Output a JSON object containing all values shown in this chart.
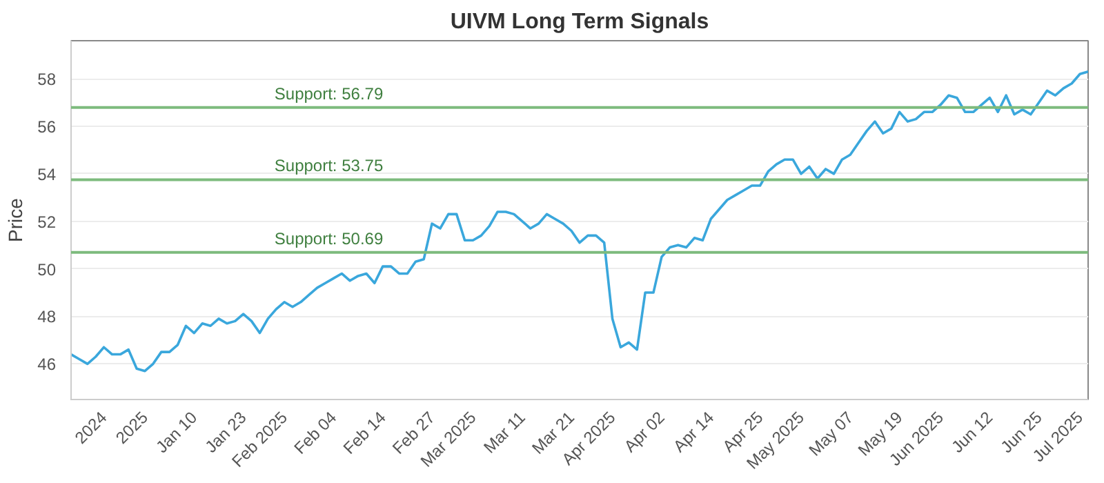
{
  "chart_data": {
    "type": "line",
    "title": "UIVM Long Term Signals",
    "ylabel": "Price",
    "categories": [
      null,
      null,
      null,
      null,
      "2024",
      null,
      null,
      null,
      null,
      "2025",
      null,
      null,
      null,
      null,
      null,
      "Jan 10",
      null,
      null,
      null,
      null,
      null,
      "Jan 23",
      null,
      null,
      null,
      null,
      "Feb 2025",
      null,
      null,
      null,
      null,
      null,
      "Feb 04",
      null,
      null,
      null,
      null,
      null,
      "Feb 14",
      null,
      null,
      null,
      null,
      null,
      "Feb 27",
      null,
      null,
      null,
      null,
      "Mar 2025",
      null,
      null,
      null,
      null,
      null,
      "Mar 11",
      null,
      null,
      null,
      null,
      null,
      "Mar 21",
      null,
      null,
      null,
      null,
      "Apr 2025",
      null,
      null,
      null,
      null,
      null,
      "Apr 02",
      null,
      null,
      null,
      null,
      null,
      "Apr 14",
      null,
      null,
      null,
      null,
      null,
      "Apr 25",
      null,
      null,
      null,
      null,
      "May 2025",
      null,
      null,
      null,
      null,
      null,
      "May 07",
      null,
      null,
      null,
      null,
      null,
      "May 19",
      null,
      null,
      null,
      null,
      "Jun 2025",
      null,
      null,
      null,
      null,
      null,
      "Jun 12",
      null,
      null,
      null,
      null,
      null,
      "Jun 25",
      null,
      null,
      null,
      null,
      "Jul 2025",
      null
    ],
    "series": [
      {
        "color": "#3aa7dc",
        "values": [
          46.4,
          46.2,
          46.0,
          46.3,
          46.7,
          46.4,
          46.4,
          46.6,
          45.8,
          45.7,
          46.0,
          46.5,
          46.5,
          46.8,
          47.6,
          47.3,
          47.7,
          47.6,
          47.9,
          47.7,
          47.8,
          48.1,
          47.8,
          47.3,
          47.9,
          48.3,
          48.6,
          48.4,
          48.6,
          48.9,
          49.2,
          49.4,
          49.6,
          49.8,
          49.5,
          49.7,
          49.8,
          49.4,
          50.1,
          50.1,
          49.8,
          49.8,
          50.3,
          50.4,
          51.9,
          51.7,
          52.3,
          52.3,
          51.2,
          51.2,
          51.4,
          51.8,
          52.4,
          52.4,
          52.3,
          52.0,
          51.7,
          51.9,
          52.3,
          52.1,
          51.9,
          51.6,
          51.1,
          51.4,
          51.4,
          51.1,
          47.9,
          46.7,
          46.9,
          46.6,
          49.0,
          49.0,
          50.5,
          50.9,
          51.0,
          50.9,
          51.3,
          51.2,
          52.1,
          52.5,
          52.9,
          53.1,
          53.3,
          53.5,
          53.5,
          54.1,
          54.4,
          54.6,
          54.6,
          54.0,
          54.3,
          53.8,
          54.2,
          54.0,
          54.6,
          54.8,
          55.3,
          55.8,
          56.2,
          55.7,
          55.9,
          56.6,
          56.2,
          56.3,
          56.6,
          56.6,
          56.9,
          57.3,
          57.2,
          56.6,
          56.6,
          56.9,
          57.2,
          56.6,
          57.3,
          56.5,
          56.7,
          56.5,
          57.0,
          57.5,
          57.3,
          57.6,
          57.8,
          58.2,
          58.3
        ]
      }
    ],
    "ylim": [
      44.5,
      59.6
    ],
    "yticks": [
      46,
      48,
      50,
      52,
      54,
      56,
      58
    ],
    "grid": "y",
    "ref_lines": [
      {
        "axis": "y",
        "value": 56.79,
        "label": "Support: 56.79",
        "color": "#7dbb7d"
      },
      {
        "axis": "y",
        "value": 53.75,
        "label": "Support: 53.75",
        "color": "#7dbb7d"
      },
      {
        "axis": "y",
        "value": 50.69,
        "label": "Support: 50.69",
        "color": "#7dbb7d"
      }
    ]
  }
}
